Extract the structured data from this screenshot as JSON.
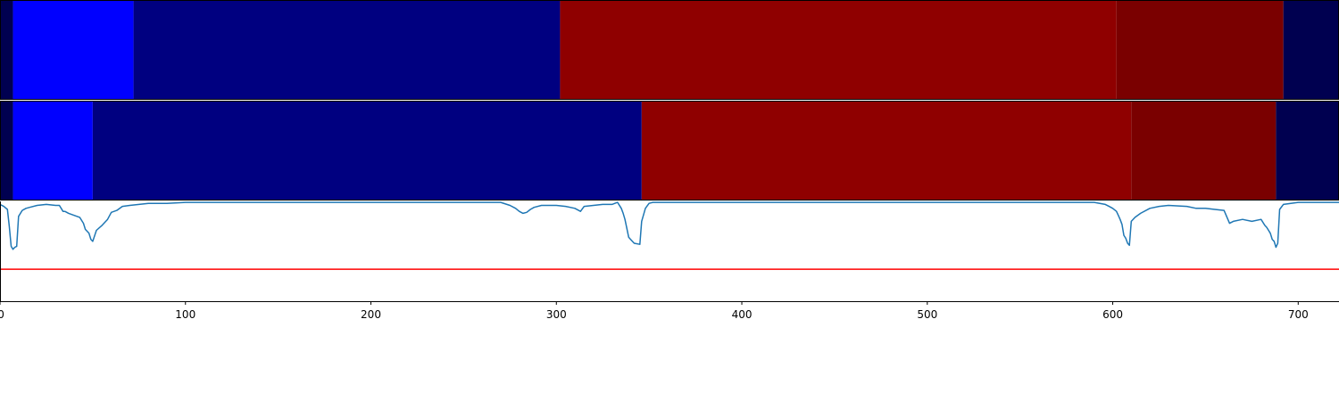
{
  "chart_data": [
    {
      "type": "heatmap",
      "xlim": [
        0,
        722
      ],
      "segments": [
        {
          "start": 0,
          "end": 7,
          "color": "#000050"
        },
        {
          "start": 7,
          "end": 72,
          "color": "#0000ff"
        },
        {
          "start": 72,
          "end": 302,
          "color": "#000080"
        },
        {
          "start": 302,
          "end": 602,
          "color": "#8f0000"
        },
        {
          "start": 602,
          "end": 692,
          "color": "#7a0000"
        },
        {
          "start": 692,
          "end": 722,
          "color": "#000050"
        }
      ]
    },
    {
      "type": "heatmap",
      "xlim": [
        0,
        722
      ],
      "segments": [
        {
          "start": 0,
          "end": 7,
          "color": "#000050"
        },
        {
          "start": 7,
          "end": 50,
          "color": "#0000ff"
        },
        {
          "start": 50,
          "end": 346,
          "color": "#000080"
        },
        {
          "start": 346,
          "end": 610,
          "color": "#8f0000"
        },
        {
          "start": 610,
          "end": 688,
          "color": "#7a0000"
        },
        {
          "start": 688,
          "end": 722,
          "color": "#000050"
        }
      ]
    },
    {
      "type": "line",
      "xlim": [
        0,
        722
      ],
      "ylim": [
        0,
        1
      ],
      "threshold": 0.32,
      "threshold_color": "#ff0000",
      "line_color": "#1f77b4",
      "x_ticks": [
        "0",
        "100",
        "200",
        "300",
        "400",
        "500",
        "600",
        "700"
      ],
      "x_tick_values": [
        0,
        100,
        200,
        300,
        400,
        500,
        600,
        700
      ],
      "series": [
        {
          "x": [
            0,
            2,
            4,
            5,
            6,
            7,
            8,
            9,
            10,
            12,
            14,
            16,
            20,
            25,
            30,
            32,
            34,
            35,
            37,
            40,
            43,
            45,
            46,
            48,
            49,
            50,
            52,
            55,
            58,
            60,
            63,
            66,
            70,
            75,
            80,
            90,
            100,
            110,
            120,
            150,
            200,
            250,
            270,
            275,
            278,
            280,
            282,
            284,
            286,
            288,
            292,
            296,
            300,
            305,
            310,
            313,
            315,
            320,
            325,
            330,
            333,
            335,
            336,
            337,
            338,
            339,
            340,
            342,
            345,
            346,
            348,
            350,
            352,
            355,
            360,
            400,
            450,
            500,
            550,
            590,
            596,
            598,
            600,
            602,
            603,
            604,
            605,
            606,
            607,
            608,
            609,
            610,
            612,
            615,
            620,
            625,
            630,
            640,
            645,
            650,
            655,
            660,
            663,
            665,
            670,
            675,
            680,
            682,
            683,
            684,
            685,
            686,
            687,
            688,
            689,
            690,
            692,
            696,
            700,
            705,
            710,
            722
          ],
          "y": [
            0.97,
            0.95,
            0.92,
            0.75,
            0.55,
            0.52,
            0.54,
            0.55,
            0.85,
            0.91,
            0.93,
            0.94,
            0.96,
            0.97,
            0.96,
            0.96,
            0.9,
            0.9,
            0.88,
            0.86,
            0.84,
            0.78,
            0.72,
            0.68,
            0.62,
            0.6,
            0.71,
            0.76,
            0.82,
            0.89,
            0.91,
            0.95,
            0.96,
            0.97,
            0.98,
            0.98,
            0.99,
            0.99,
            0.99,
            0.99,
            0.99,
            0.99,
            0.99,
            0.96,
            0.93,
            0.9,
            0.88,
            0.89,
            0.92,
            0.94,
            0.96,
            0.96,
            0.96,
            0.95,
            0.93,
            0.9,
            0.95,
            0.96,
            0.97,
            0.97,
            0.99,
            0.93,
            0.88,
            0.82,
            0.73,
            0.64,
            0.62,
            0.58,
            0.57,
            0.8,
            0.93,
            0.98,
            0.99,
            0.99,
            0.99,
            0.99,
            0.99,
            0.99,
            0.99,
            0.99,
            0.97,
            0.95,
            0.93,
            0.9,
            0.86,
            0.82,
            0.77,
            0.66,
            0.63,
            0.58,
            0.56,
            0.8,
            0.84,
            0.88,
            0.93,
            0.95,
            0.96,
            0.95,
            0.93,
            0.93,
            0.92,
            0.91,
            0.78,
            0.8,
            0.82,
            0.8,
            0.82,
            0.76,
            0.74,
            0.71,
            0.68,
            0.62,
            0.6,
            0.54,
            0.58,
            0.92,
            0.97,
            0.98,
            0.99,
            0.99,
            0.99,
            0.99
          ]
        }
      ]
    }
  ]
}
